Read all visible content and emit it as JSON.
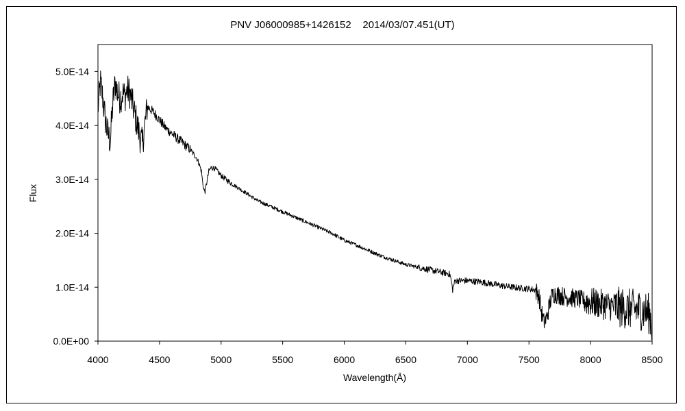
{
  "chart_data": {
    "type": "line",
    "title": "PNV J06000985+1426152    2014/03/07.451(UT)",
    "xlabel": "Wavelength(Å)",
    "ylabel": "Flux",
    "xlim": [
      4000,
      8500
    ],
    "ylim": [
      0,
      5.5e-14
    ],
    "xticks": [
      4000,
      4500,
      5000,
      5500,
      6000,
      6500,
      7000,
      7500,
      8000,
      8500
    ],
    "yticks": [
      0,
      1e-14,
      2e-14,
      3e-14,
      4e-14,
      5e-14
    ],
    "xtick_labels": [
      "4000",
      "4500",
      "5000",
      "5500",
      "6000",
      "6500",
      "7000",
      "7500",
      "8000",
      "8500"
    ],
    "ytick_labels": [
      "0.0E+00",
      "1.0E-14",
      "2.0E-14",
      "3.0E-14",
      "4.0E-14",
      "5.0E-14"
    ],
    "grid": false,
    "series": [
      {
        "x": [
          4000,
          4020,
          4040,
          4060,
          4080,
          4100,
          4120,
          4140,
          4160,
          4180,
          4200,
          4220,
          4240,
          4260,
          4280,
          4300,
          4320,
          4340,
          4360,
          4380,
          4400,
          4450,
          4500,
          4550,
          4600,
          4650,
          4700,
          4750,
          4800,
          4820,
          4840,
          4850,
          4860,
          4870,
          4880,
          4900,
          4920,
          4950,
          5000,
          5050,
          5100,
          5200,
          5300,
          5400,
          5500,
          5600,
          5700,
          5800,
          5900,
          6000,
          6100,
          6200,
          6300,
          6400,
          6500,
          6600,
          6700,
          6800,
          6850,
          6860,
          6870,
          6880,
          6890,
          6900,
          7000,
          7100,
          7200,
          7300,
          7400,
          7500,
          7550,
          7580,
          7600,
          7620,
          7640,
          7660,
          7680,
          7700,
          7750,
          7800,
          7900,
          8000,
          8100,
          8200,
          8300,
          8400,
          8450,
          8480,
          8500
        ],
        "y": [
          4.3e-14,
          4.8e-14,
          4.5e-14,
          4.1e-14,
          3.85e-14,
          3.7e-14,
          4.4e-14,
          4.8e-14,
          4.6e-14,
          4.5e-14,
          4.6e-14,
          4.55e-14,
          4.65e-14,
          4.6e-14,
          4.4e-14,
          4.2e-14,
          4e-14,
          3.8e-14,
          3.65e-14,
          4e-14,
          4.35e-14,
          4.25e-14,
          4.1e-14,
          3.95e-14,
          3.85e-14,
          3.75e-14,
          3.65e-14,
          3.55e-14,
          3.4e-14,
          3.3e-14,
          3.15e-14,
          2.95e-14,
          2.8e-14,
          2.78e-14,
          2.9e-14,
          3.15e-14,
          3.22e-14,
          3.2e-14,
          3.07e-14,
          2.98e-14,
          2.9e-14,
          2.75e-14,
          2.6e-14,
          2.5e-14,
          2.4e-14,
          2.3e-14,
          2.2e-14,
          2.1e-14,
          2e-14,
          1.87e-14,
          1.78e-14,
          1.68e-14,
          1.58e-14,
          1.5e-14,
          1.42e-14,
          1.37e-14,
          1.32e-14,
          1.27e-14,
          1.25e-14,
          1.22e-14,
          1.1e-14,
          9.5e-15,
          1.05e-14,
          1.12e-14,
          1.12e-14,
          1.1e-14,
          1.06e-14,
          1.02e-14,
          9.9e-15,
          9.7e-15,
          9.5e-15,
          8.5e-15,
          5.5e-15,
          3.5e-15,
          4e-15,
          6e-15,
          8e-15,
          8.8e-15,
          8.5e-15,
          8.2e-15,
          7.8e-15,
          7.2e-15,
          6.8e-15,
          6.4e-15,
          6e-15,
          5.8e-15,
          5.5e-15,
          5e-15,
          3e-15
        ]
      }
    ]
  }
}
